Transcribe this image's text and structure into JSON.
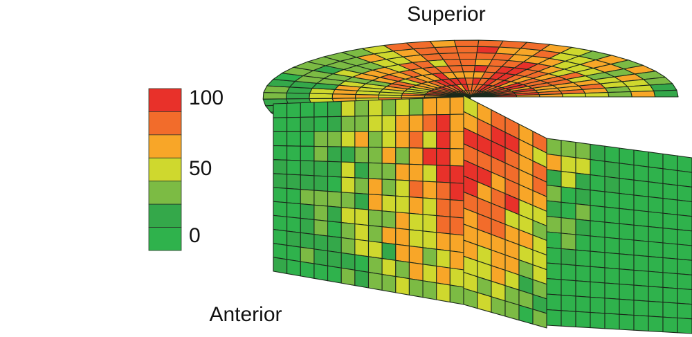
{
  "labels": {
    "superior": "Superior",
    "anterior": "Anterior"
  },
  "legend": {
    "labels": [
      "100",
      "50",
      "0"
    ],
    "colors": [
      "#e8312a",
      "#f26c2b",
      "#f8a628",
      "#cfd82e",
      "#7cbb44",
      "#34a84a",
      "#2fb24c"
    ]
  }
}
